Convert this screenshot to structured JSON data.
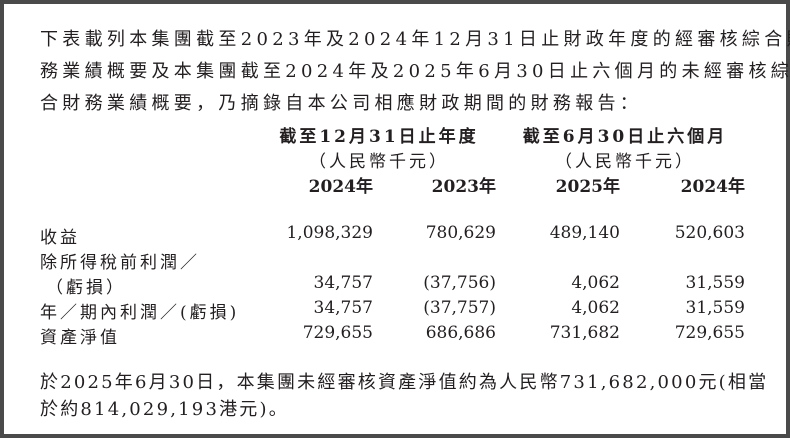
{
  "intro": [
    "下表載列本集團截至2023年及2024年12月31日止財政年度的經審核綜合財",
    "務業績概要及本集團截至2024年及2025年6月30日止六個月的未經審核綜",
    "合財務業績概要，乃摘錄自本公司相應財政期間的財務報告："
  ],
  "table": {
    "group_headers": [
      {
        "title": "截至12月31日止年度",
        "unit": "（人民幣千元）"
      },
      {
        "title": "截至6月30日止六個月",
        "unit": "（人民幣千元）"
      }
    ],
    "years": [
      "2024年",
      "2023年",
      "2025年",
      "2024年"
    ],
    "rows": [
      {
        "label": "收益",
        "values": [
          "1,098,329",
          "780,629",
          "489,140",
          "520,603"
        ]
      },
      {
        "label": "除所得稅前利潤／",
        "values": [
          "",
          "",
          "",
          ""
        ]
      },
      {
        "label": "（虧損）",
        "values": [
          "34,757",
          "(37,756)",
          "4,062",
          "31,559"
        ]
      },
      {
        "label": "年／期內利潤／(虧損)",
        "values": [
          "34,757",
          "(37,757)",
          "4,062",
          "31,559"
        ]
      },
      {
        "label": "資產淨值",
        "values": [
          "729,655",
          "686,686",
          "731,682",
          "729,655"
        ]
      }
    ]
  },
  "note": [
    "於2025年6月30日，本集團未經審核資產淨值約為人民幣731,682,000元(相當",
    "於約814,029,193港元)。"
  ]
}
